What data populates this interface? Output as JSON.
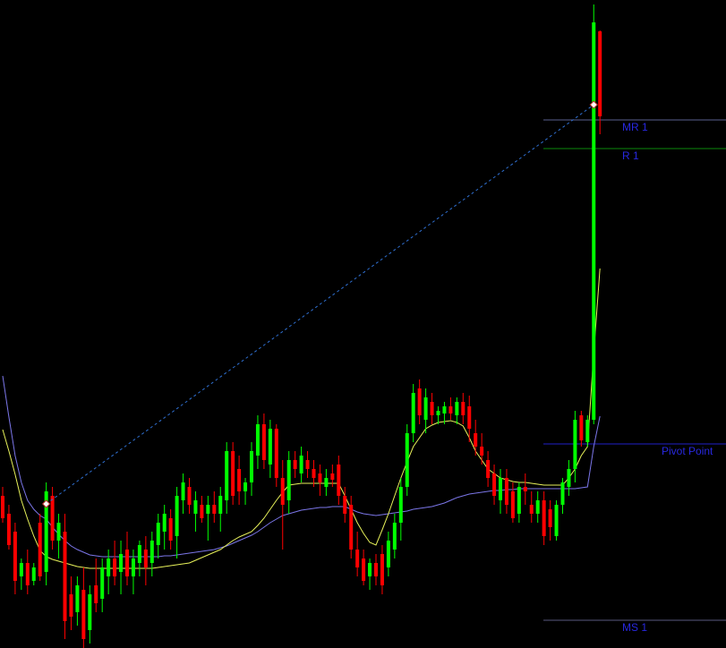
{
  "chart_data": {
    "type": "candlestick",
    "ylim": [
      0,
      724
    ],
    "up_color": "#00ff00",
    "down_color": "#ff0000",
    "open": [
      170,
      150,
      130,
      80,
      95,
      75,
      140,
      85,
      170,
      120,
      130,
      60,
      40,
      65,
      20,
      70,
      55,
      80,
      100,
      85,
      110,
      80,
      95,
      110,
      95,
      115,
      130,
      145,
      125,
      165,
      180,
      150,
      160,
      150,
      160,
      150,
      165,
      220,
      200,
      175,
      185,
      215,
      250,
      205,
      245,
      190,
      165,
      210,
      195,
      210,
      200,
      195,
      180,
      195,
      205,
      170,
      160,
      110,
      100,
      80,
      95,
      105,
      90,
      110,
      140,
      180,
      240,
      290,
      255,
      275,
      260,
      262,
      270,
      260,
      275,
      270,
      240,
      225,
      210,
      195,
      165,
      190,
      175,
      150,
      180,
      160,
      150,
      165,
      155,
      125,
      160,
      180,
      200,
      260,
      230,
      255,
      689
    ],
    "high": [
      180,
      160,
      140,
      100,
      110,
      95,
      150,
      185,
      180,
      150,
      150,
      80,
      80,
      90,
      70,
      100,
      100,
      110,
      120,
      120,
      130,
      110,
      120,
      125,
      130,
      150,
      160,
      155,
      180,
      195,
      190,
      175,
      170,
      170,
      175,
      180,
      230,
      230,
      215,
      190,
      230,
      260,
      262,
      255,
      250,
      210,
      220,
      220,
      225,
      220,
      210,
      205,
      200,
      205,
      215,
      180,
      170,
      130,
      110,
      100,
      105,
      115,
      130,
      150,
      190,
      250,
      295,
      300,
      290,
      285,
      270,
      275,
      280,
      280,
      285,
      282,
      255,
      240,
      220,
      205,
      200,
      200,
      185,
      185,
      195,
      175,
      175,
      175,
      165,
      165,
      190,
      210,
      265,
      265,
      260,
      719,
      690
    ],
    "low": [
      140,
      110,
      60,
      65,
      60,
      70,
      75,
      70,
      110,
      100,
      10,
      20,
      25,
      0,
      5,
      40,
      40,
      60,
      70,
      60,
      70,
      60,
      80,
      70,
      80,
      100,
      110,
      110,
      100,
      150,
      150,
      130,
      140,
      120,
      140,
      130,
      150,
      160,
      160,
      160,
      170,
      200,
      200,
      190,
      180,
      110,
      150,
      190,
      185,
      190,
      180,
      170,
      170,
      180,
      160,
      140,
      100,
      80,
      70,
      65,
      70,
      60,
      80,
      100,
      120,
      170,
      230,
      250,
      240,
      250,
      250,
      250,
      255,
      250,
      250,
      230,
      215,
      205,
      180,
      160,
      150,
      150,
      140,
      140,
      160,
      140,
      140,
      115,
      120,
      120,
      150,
      170,
      185,
      225,
      225,
      250,
      574
    ],
    "close": [
      145,
      115,
      75,
      95,
      70,
      90,
      80,
      175,
      120,
      140,
      30,
      35,
      70,
      10,
      60,
      50,
      90,
      100,
      80,
      105,
      80,
      100,
      115,
      90,
      120,
      140,
      150,
      120,
      170,
      185,
      160,
      165,
      145,
      160,
      150,
      170,
      220,
      170,
      175,
      185,
      220,
      250,
      210,
      245,
      190,
      160,
      210,
      200,
      215,
      200,
      190,
      185,
      190,
      188,
      170,
      150,
      110,
      90,
      75,
      95,
      80,
      70,
      120,
      140,
      180,
      240,
      285,
      260,
      280,
      260,
      265,
      270,
      262,
      275,
      260,
      245,
      225,
      215,
      190,
      170,
      190,
      160,
      145,
      180,
      175,
      150,
      165,
      125,
      135,
      160,
      185,
      200,
      255,
      232,
      255,
      699,
      594
    ],
    "series": [
      {
        "color": "#7b76e8",
        "values": [
          304,
          258,
          215,
          185,
          165,
          155,
          148,
          144,
          135,
          127,
          120,
          114,
          110,
          107,
          104,
          103,
          102,
          102,
          102,
          102,
          102,
          102,
          102,
          102,
          102,
          102,
          103,
          103,
          104,
          105,
          106,
          107,
          108,
          109,
          110,
          112,
          114,
          117,
          120,
          123,
          126,
          130,
          135,
          140,
          144,
          148,
          150,
          152,
          154,
          155,
          156,
          157,
          157,
          158,
          158,
          158,
          155,
          152,
          150,
          149,
          148,
          149,
          150,
          151,
          152,
          153,
          155,
          156,
          157,
          158,
          160,
          162,
          165,
          168,
          170,
          172,
          173,
          174,
          175,
          176,
          176,
          177,
          177,
          178,
          178,
          178,
          178,
          178,
          178,
          178,
          178,
          178,
          178,
          179,
          180,
          225,
          259
        ]
      },
      {
        "color": "#e8f25a",
        "values": [
          244,
          220,
          194,
          165,
          144,
          125,
          109,
          102,
          99,
          97,
          95,
          93,
          91,
          90,
          89,
          89,
          89,
          89,
          89,
          89,
          89,
          89,
          89,
          89,
          89,
          90,
          91,
          92,
          93,
          94,
          95,
          98,
          101,
          104,
          107,
          110,
          115,
          120,
          124,
          127,
          130,
          137,
          145,
          155,
          165,
          174,
          182,
          183,
          184,
          184,
          184,
          184,
          184,
          184,
          184,
          170,
          155,
          140,
          128,
          118,
          115,
          132,
          150,
          170,
          190,
          208,
          225,
          235,
          245,
          249,
          252,
          253,
          254,
          252,
          248,
          235,
          220,
          210,
          200,
          195,
          190,
          188,
          186,
          185,
          185,
          184,
          183,
          182,
          182,
          182,
          182,
          190,
          200,
          215,
          225,
          330,
          424
        ]
      }
    ],
    "trendline": {
      "color": "#2f6fd0",
      "x": [
        7,
        95
      ],
      "values": [
        161,
        607
      ]
    },
    "levels": [
      {
        "name": "MR 1",
        "value": 590,
        "color": "#5a6090"
      },
      {
        "name": "R 1",
        "value": 558,
        "color": "#0c8a0c"
      },
      {
        "name": "Pivot Point",
        "value": 228,
        "color": "#2020c8"
      },
      {
        "name": "MS 1",
        "value": 31,
        "color": "#5a5a80"
      }
    ],
    "label_color": "#2828e0"
  }
}
